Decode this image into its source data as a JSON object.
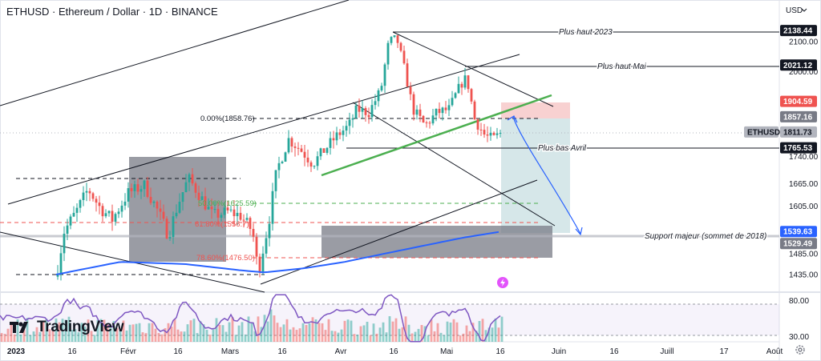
{
  "title": "ETHUSD · Ethereum / Dollar · 1D · BINANCE",
  "brand": "TradingView",
  "currency_label": "USD",
  "icons": {
    "logo": "tradingview-logo-icon",
    "settings": "gear-icon",
    "alert": "lightning-icon",
    "currency": "chevron-down-icon"
  },
  "colors": {
    "up": "#26a69a",
    "down": "#ef5350",
    "ma": "#2962ff",
    "trend": "#4caf50",
    "rsi": "#7e57c2",
    "stop_zone": "#f7c9c9",
    "target_zone": "#cfe3e5",
    "box": "#787b86"
  },
  "labels": {
    "plus_haut_2023": "Plus haut 2023",
    "plus_haut_mai": "Plus haut Mai",
    "plus_bas_avril": "Plus bas Avril",
    "support": "Support majeur (sommet de 2018)",
    "fib_0": "0.00%(1858.76)",
    "fib_50": "50.00%(1625.59)",
    "fib_618": "61.80%(1556.7)",
    "fib_786": "78.60%(1476.50)"
  },
  "price_badges": [
    {
      "text": "2138.44",
      "value": 2138.44,
      "style": "dark"
    },
    {
      "text": "2021.12",
      "value": 2021.12,
      "style": "dark"
    },
    {
      "text": "1904.59",
      "value": 1904.59,
      "style": "red"
    },
    {
      "text": "1857.16",
      "value": 1857.16,
      "style": "gray"
    },
    {
      "text": "ETHUSD",
      "value": 1811.73,
      "style": "light"
    },
    {
      "text": "1811.73",
      "value": 1811.73,
      "style": "light"
    },
    {
      "text": "1765.53",
      "value": 1765.53,
      "style": "dark"
    },
    {
      "text": "1539.63",
      "value": 1539.63,
      "style": "blue"
    },
    {
      "text": "1529.49",
      "value": 1529.49,
      "style": "gray"
    }
  ],
  "chart_data": {
    "type": "candlestick",
    "title": "ETHUSD · Ethereum / Dollar · 1D · BINANCE",
    "y_axis": {
      "ticks": [
        2100,
        2000,
        1740,
        1665,
        1605,
        1485,
        1435
      ],
      "min": 1405,
      "max": 2215,
      "scale": "log"
    },
    "x_axis": {
      "ticks": [
        "2023",
        "16",
        "Févr",
        "16",
        "Mars",
        "16",
        "Avr",
        "16",
        "Mai",
        "16",
        "Juin",
        "16",
        "Juill",
        "17",
        "Août"
      ]
    },
    "rsi": {
      "ticks": [
        80,
        30
      ],
      "upper": 70,
      "lower": 30
    },
    "moving_average_period": 200,
    "fibonacci": [
      {
        "level": "0.00%",
        "price": 1858.76
      },
      {
        "level": "50.00%",
        "price": 1625.59
      },
      {
        "level": "61.80%",
        "price": 1556.7
      },
      {
        "level": "78.60%",
        "price": 1476.5
      }
    ],
    "annotations": [
      {
        "text": "Plus haut 2023",
        "price": 2138.44
      },
      {
        "text": "Plus haut Mai",
        "price": 2021.12
      },
      {
        "text": "Plus bas Avril",
        "price": 1765.53
      },
      {
        "text": "Support majeur (sommet de 2018)",
        "price": 1529.49
      }
    ],
    "grid": false,
    "legend": "none"
  }
}
